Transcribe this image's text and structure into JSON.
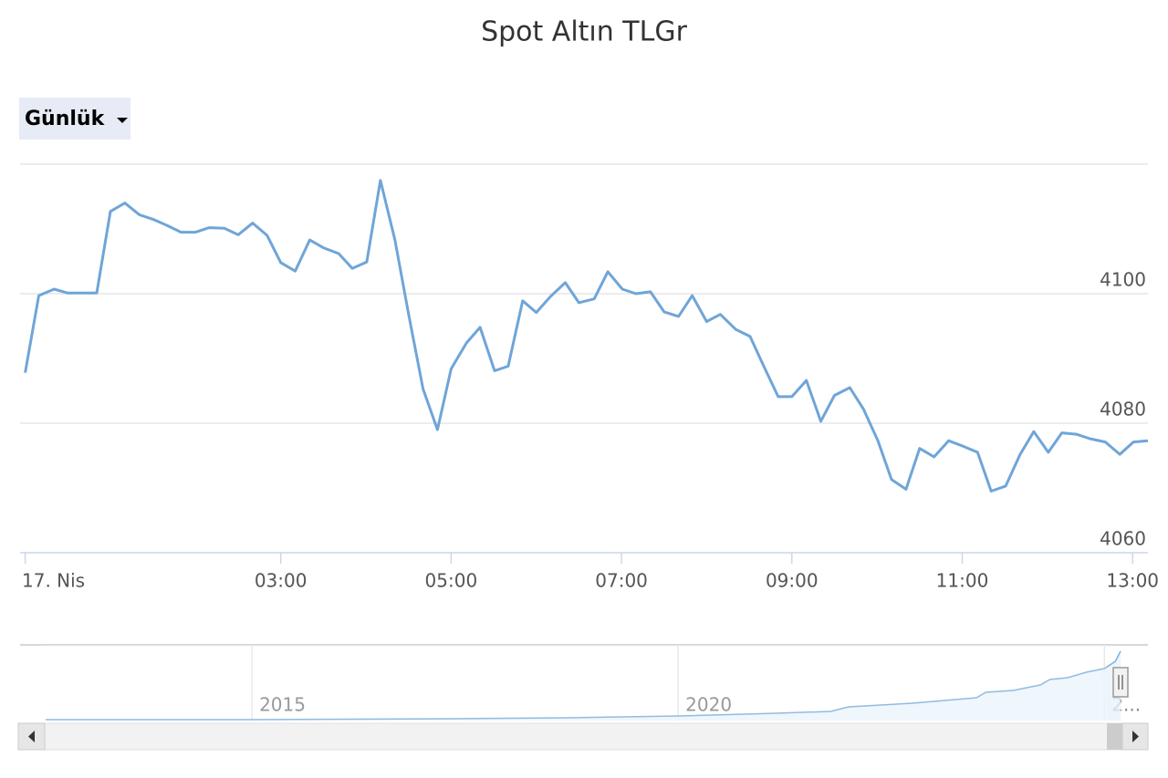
{
  "chart_data": {
    "type": "line",
    "title": "Spot Altın TLGr",
    "range_selector": "Günlük",
    "x": [
      0,
      0.16,
      0.34,
      0.5,
      0.66,
      0.84,
      1.0,
      1.17,
      1.34,
      1.5,
      1.67,
      1.83,
      2.0,
      2.16,
      2.34,
      2.5,
      2.67,
      2.84,
      3.0,
      3.17,
      3.34,
      3.5,
      3.68,
      3.84,
      4.01,
      4.17,
      4.34,
      4.5,
      4.67,
      4.84,
      5.0,
      5.18,
      5.34,
      5.51,
      5.67,
      5.84,
      6.0,
      6.17,
      6.34,
      6.5,
      6.68,
      6.84,
      7.01,
      7.17,
      7.34,
      7.5,
      7.67,
      7.83,
      8.0,
      8.16,
      8.34,
      8.51,
      8.67,
      8.84,
      9.0,
      9.17,
      9.34,
      9.5,
      9.68,
      9.84,
      10.01,
      10.17,
      10.34,
      10.5,
      10.67,
      10.84,
      11.0,
      11.18,
      11.34,
      11.51,
      11.68,
      11.84,
      12.01,
      12.17,
      12.34,
      12.5,
      12.68,
      12.85,
      13.01,
      13.18
    ],
    "series": [
      {
        "name": "Spot Altın TLGr",
        "color": "#6fa5d8",
        "values": [
          4087.8,
          4099.7,
          4100.7,
          4100.1,
          4100.1,
          4100.1,
          4112.7,
          4114.0,
          4112.2,
          4111.5,
          4110.5,
          4109.5,
          4109.5,
          4110.2,
          4110.1,
          4109.1,
          4110.9,
          4109.0,
          4104.8,
          4103.5,
          4108.3,
          4107.1,
          4106.2,
          4103.9,
          4104.9,
          4117.5,
          4108.3,
          4096.9,
          4085.3,
          4079.0,
          4088.4,
          4092.4,
          4094.8,
          4088.1,
          4088.8,
          4098.9,
          4097.1,
          4099.6,
          4101.7,
          4098.6,
          4099.2,
          4103.4,
          4100.7,
          4100.0,
          4100.3,
          4097.2,
          4096.5,
          4099.7,
          4095.7,
          4096.8,
          4094.5,
          4093.4,
          4088.8,
          4084.1,
          4084.1,
          4086.6,
          4080.3,
          4084.3,
          4085.5,
          4082.2,
          4077.3,
          4071.3,
          4069.8,
          4076.1,
          4074.8,
          4077.3,
          4076.5,
          4075.5,
          4069.5,
          4070.3,
          4075.2,
          4078.7,
          4075.5,
          4078.5,
          4078.3,
          4077.6,
          4077.1,
          4075.2,
          4077.1,
          4077.3
        ]
      }
    ],
    "xlim": [
      -0.06,
      13.18
    ],
    "xticks": [
      {
        "value": 0,
        "label": "17. Nis"
      },
      {
        "value": 3,
        "label": "03:00"
      },
      {
        "value": 5,
        "label": "05:00"
      },
      {
        "value": 7,
        "label": "07:00"
      },
      {
        "value": 9,
        "label": "09:00"
      },
      {
        "value": 11,
        "label": "11:00"
      },
      {
        "value": 13,
        "label": "13:00"
      }
    ],
    "ylim": [
      4060,
      4120
    ],
    "yticks": [
      4060,
      4080,
      4100
    ],
    "grid": true,
    "navigator": {
      "x": [
        2012.58,
        2015,
        2017.4,
        2018.68,
        2020,
        2021.15,
        2021.79,
        2022.0,
        2022.75,
        2023.5,
        2023.61,
        2023.93,
        2024.25,
        2024.36,
        2024.57,
        2024.79,
        2025.0,
        2025.13,
        2025.19
      ],
      "values": [
        51,
        51,
        101,
        152,
        253,
        405,
        506,
        759,
        961,
        1265,
        1569,
        1670,
        1973,
        2277,
        2378,
        2682,
        2884,
        3289,
        3846
      ],
      "xlim": [
        2012.58,
        2025.19
      ],
      "ylim": [
        0,
        4200
      ],
      "xticks": [
        2015,
        2020,
        {
          "value": 2025,
          "label": "2..."
        }
      ]
    }
  }
}
